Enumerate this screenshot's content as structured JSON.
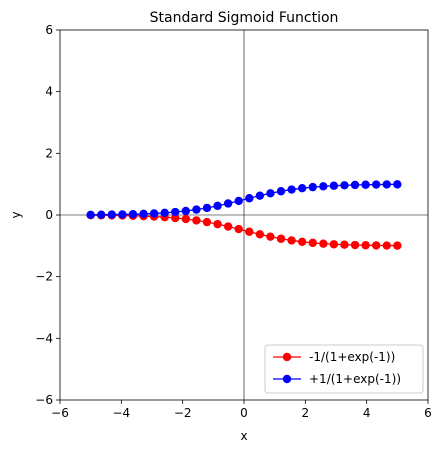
{
  "chart_data": {
    "type": "line",
    "title": "Standard Sigmoid Function",
    "xlabel": "x",
    "ylabel": "y",
    "xlim": [
      -6,
      6
    ],
    "ylim": [
      -6,
      6
    ],
    "xticks": [
      -6,
      -4,
      -2,
      0,
      2,
      4,
      6
    ],
    "yticks": [
      -6,
      -4,
      -2,
      0,
      2,
      4,
      6
    ],
    "xtick_labels": [
      "−6",
      "−4",
      "−2",
      "0",
      "2",
      "4",
      "6"
    ],
    "ytick_labels": [
      "−6",
      "−4",
      "−2",
      "0",
      "2",
      "4",
      "6"
    ],
    "grid": false,
    "reference_lines": {
      "x0": true,
      "y0": true
    },
    "legend_position": "lower-right",
    "x": [
      -5.0,
      -4.6552,
      -4.3103,
      -3.9655,
      -3.6207,
      -3.2759,
      -2.931,
      -2.5862,
      -2.2414,
      -1.8966,
      -1.5517,
      -1.2069,
      -0.8621,
      -0.5172,
      -0.1724,
      0.1724,
      0.5172,
      0.8621,
      1.2069,
      1.5517,
      1.8966,
      2.2414,
      2.5862,
      2.931,
      3.2759,
      3.6207,
      3.9655,
      4.3103,
      4.6552,
      5.0
    ],
    "series": [
      {
        "name": "-1/(1+exp(-1))",
        "color": "#ff0000",
        "values": [
          -0.0067,
          -0.0094,
          -0.0133,
          -0.0186,
          -0.0261,
          -0.0364,
          -0.0506,
          -0.07,
          -0.0962,
          -0.1305,
          -0.1749,
          -0.2302,
          -0.2968,
          -0.3735,
          -0.457,
          -0.543,
          -0.6265,
          -0.7032,
          -0.7698,
          -0.8251,
          -0.8695,
          -0.9038,
          -0.93,
          -0.9494,
          -0.9636,
          -0.9739,
          -0.9814,
          -0.9867,
          -0.9906,
          -0.9933
        ]
      },
      {
        "name": "+1/(1+exp(-1))",
        "color": "#0000ff",
        "values": [
          0.0067,
          0.0094,
          0.0133,
          0.0186,
          0.0261,
          0.0364,
          0.0506,
          0.07,
          0.0962,
          0.1305,
          0.1749,
          0.2302,
          0.2968,
          0.3735,
          0.457,
          0.543,
          0.6265,
          0.7032,
          0.7698,
          0.8251,
          0.8695,
          0.9038,
          0.93,
          0.9494,
          0.9636,
          0.9739,
          0.9814,
          0.9867,
          0.9906,
          0.9933
        ]
      }
    ]
  }
}
